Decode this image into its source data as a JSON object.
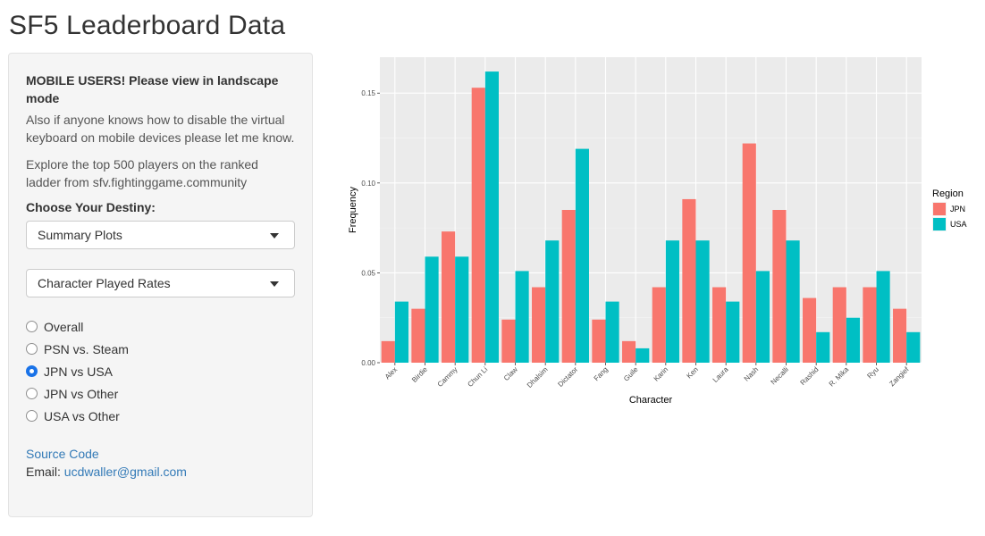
{
  "page": {
    "title": "SF5 Leaderboard Data"
  },
  "sidebar": {
    "notice_title": "MOBILE USERS! Please view in landscape mode",
    "notice_text": "Also if anyone knows how to disable the virtual keyboard on mobile devices please let me know.",
    "explore_text": "Explore the top 500 players on the ranked ladder from sfv.fightinggame.community",
    "destiny_label": "Choose Your Destiny:",
    "select_mode": "Summary Plots",
    "select_plot": "Character Played Rates",
    "radios": [
      {
        "label": "Overall",
        "checked": false
      },
      {
        "label": "PSN vs. Steam",
        "checked": false
      },
      {
        "label": "JPN vs USA",
        "checked": true
      },
      {
        "label": "JPN vs Other",
        "checked": false
      },
      {
        "label": "USA vs Other",
        "checked": false
      }
    ],
    "source_link": "Source Code",
    "email_label": "Email:",
    "email": "ucdwaller@gmail.com"
  },
  "chart_data": {
    "type": "bar",
    "xlabel": "Character",
    "ylabel": "Frequency",
    "ylim": [
      0,
      0.17
    ],
    "yticks": [
      0.0,
      0.05,
      0.1,
      0.15
    ],
    "ytick_labels": [
      "0.00",
      "0.05",
      "0.10",
      "0.15"
    ],
    "grid": true,
    "legend_title": "Region",
    "legend_position": "right",
    "categories": [
      "Alex",
      "Birdie",
      "Cammy",
      "Chun Li",
      "Claw",
      "Dhalsim",
      "Dictator",
      "Fang",
      "Guile",
      "Karin",
      "Ken",
      "Laura",
      "Nash",
      "Necalli",
      "Rashid",
      "R. Mika",
      "Ryu",
      "Zangief"
    ],
    "series": [
      {
        "name": "JPN",
        "color": "#F8766D",
        "values": [
          0.012,
          0.03,
          0.073,
          0.153,
          0.024,
          0.042,
          0.085,
          0.024,
          0.012,
          0.042,
          0.091,
          0.042,
          0.122,
          0.085,
          0.036,
          0.042,
          0.042,
          0.03
        ]
      },
      {
        "name": "USA",
        "color": "#00BFC4",
        "values": [
          0.034,
          0.059,
          0.059,
          0.162,
          0.051,
          0.068,
          0.119,
          0.034,
          0.008,
          0.068,
          0.068,
          0.034,
          0.051,
          0.068,
          0.017,
          0.025,
          0.051,
          0.017
        ]
      }
    ]
  }
}
